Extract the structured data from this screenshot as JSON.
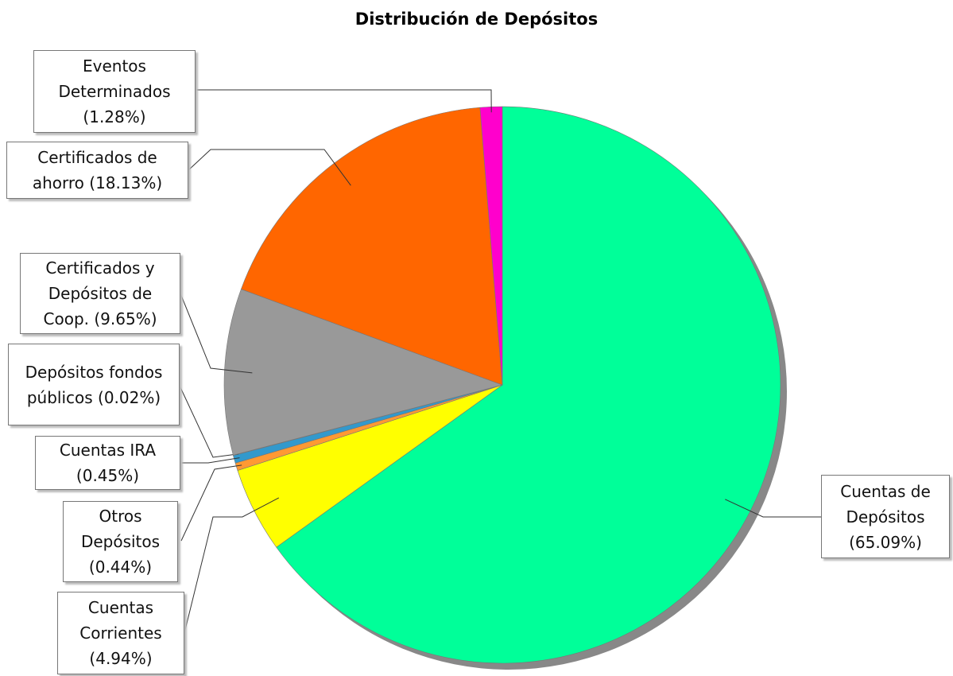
{
  "chart_data": {
    "type": "pie",
    "title": "Distribución de Depósitos",
    "categories": [
      "Cuentas de Depósitos",
      "Cuentas Corrientes",
      "Otros Depósitos",
      "Cuentas IRA",
      "Depósitos fondos públicos",
      "Certificados y Depósitos de Coop.",
      "Certificados de ahorro",
      "Eventos Determinados"
    ],
    "values": [
      65.09,
      4.94,
      0.44,
      0.45,
      0.02,
      9.65,
      18.13,
      1.28
    ],
    "value_labels": [
      "(65.09%)",
      "(4.94%)",
      "(0.44%)",
      "(0.45%)",
      "(0.02%)",
      "(9.65%)",
      "(18.13%)",
      "(1.28%)"
    ],
    "colors": [
      "#00ff99",
      "#ffff00",
      "#ff9933",
      "#3399cc",
      "#336699",
      "#999999",
      "#ff6600",
      "#ff00cc"
    ]
  }
}
